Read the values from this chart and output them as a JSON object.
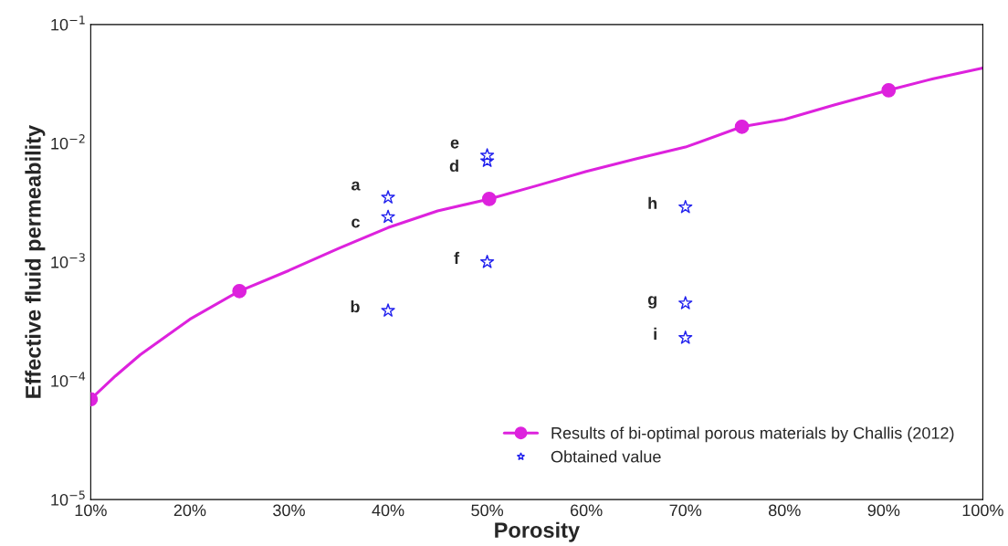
{
  "chart_data": {
    "type": "line",
    "xlabel": "Porosity",
    "ylabel": "Effective fluid permeability",
    "log": "y",
    "grid": false,
    "legend": "bottom right",
    "xlim": [
      10,
      100
    ],
    "xticks": [
      {
        "value": 10,
        "label": "10%"
      },
      {
        "value": 20,
        "label": "20%"
      },
      {
        "value": 30,
        "label": "30%"
      },
      {
        "value": 40,
        "label": "40%"
      },
      {
        "value": 50,
        "label": "50%"
      },
      {
        "value": 60,
        "label": "60%"
      },
      {
        "value": 70,
        "label": "70%"
      },
      {
        "value": 80,
        "label": "80%"
      },
      {
        "value": 90,
        "label": "90%"
      },
      {
        "value": 100,
        "label": "100%"
      }
    ],
    "ylim": [
      1e-05,
      0.1
    ],
    "yticks": [
      {
        "value": 1e-05,
        "label": "10$^{−5}$"
      },
      {
        "value": 0.0001,
        "label": "10$^{−4}$"
      },
      {
        "value": 0.001,
        "label": "10$^{−3}$"
      },
      {
        "value": 0.01,
        "label": "10$^{−2}$"
      },
      {
        "value": 0.1,
        "label": "10$^{−1}$"
      }
    ],
    "series": [
      {
        "type": "line",
        "color": "#dd22dd",
        "marker": "none",
        "line_style": "solid",
        "x": [
          10,
          12.5,
          15,
          20,
          25,
          30,
          35,
          40,
          45,
          50.2,
          55,
          60,
          65,
          70,
          75.7,
          80,
          85,
          90.5,
          95,
          100
        ],
        "values": [
          7e-05,
          0.00011,
          0.000166,
          0.00033,
          0.00057,
          0.00085,
          0.0013,
          0.00195,
          0.0027,
          0.0034,
          0.0044,
          0.0058,
          0.0074,
          0.0093,
          0.0138,
          0.0159,
          0.021,
          0.028,
          0.035,
          0.043
        ]
      },
      {
        "name": "Results of bi-optimal porous materials by Challis (2012)",
        "type": "scatter",
        "color": "#dd22dd",
        "marker": "circle",
        "x": [
          10,
          25,
          50.2,
          75.7,
          90.5
        ],
        "values": [
          7e-05,
          0.00057,
          0.0034,
          0.0138,
          0.028
        ]
      },
      {
        "name": "Obtained value",
        "type": "scatter",
        "color": "#2222ee",
        "marker": "star",
        "x": [
          40,
          40,
          40,
          50,
          50,
          50,
          70,
          70,
          70
        ],
        "values": [
          0.0035,
          0.00039,
          0.0024,
          0.0071,
          0.0079,
          0.001,
          0.00045,
          0.0029,
          0.00023
        ]
      }
    ],
    "annotations": [
      {
        "text": "a",
        "x": 40,
        "y": 0.0035
      },
      {
        "text": "b",
        "x": 40,
        "y": 0.00039
      },
      {
        "text": "c",
        "x": 40,
        "y": 0.0024
      },
      {
        "text": "d",
        "x": 50,
        "y": 0.0071
      },
      {
        "text": "e",
        "x": 50,
        "y": 0.0079
      },
      {
        "text": "f",
        "x": 50,
        "y": 0.001
      },
      {
        "text": "g",
        "x": 70,
        "y": 0.00045
      },
      {
        "text": "h",
        "x": 70,
        "y": 0.0029
      },
      {
        "text": "i",
        "x": 70,
        "y": 0.00023
      }
    ]
  }
}
